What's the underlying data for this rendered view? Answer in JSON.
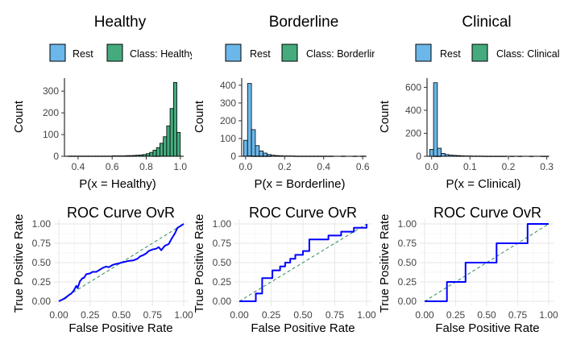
{
  "panels": [
    {
      "title": "Healthy",
      "legend": [
        {
          "label": "Rest",
          "color": "#6bb7ea"
        },
        {
          "label": "Class: Healthy",
          "color": "#45ab7e"
        }
      ],
      "hist": {
        "type": "bar",
        "xlabel": "P(x = Healthy)",
        "ylabel": "Count",
        "xlim": [
          0.32,
          1.02
        ],
        "ylim": [
          0,
          360
        ],
        "xticks": [
          0.4,
          0.6,
          0.8,
          1.0
        ],
        "xtick_labels": [
          "0.4",
          "0.6",
          "0.8",
          "1.0"
        ],
        "yticks": [
          0,
          100,
          200,
          300
        ],
        "binwidth": 0.02,
        "series": [
          {
            "name": "Rest",
            "color": "#6bb7ea",
            "bins": [
              0.35,
              0.37,
              0.39,
              0.41,
              0.43,
              0.45,
              0.47,
              0.49,
              0.51,
              0.53,
              0.55,
              0.57,
              0.59,
              0.61,
              0.63,
              0.65,
              0.67,
              0.69,
              0.71,
              0.73,
              0.75,
              0.77,
              0.79,
              0.81,
              0.83,
              0.85,
              0.87,
              0.89,
              0.91,
              0.93,
              0.95,
              0.97,
              0.99
            ],
            "counts": [
              0,
              0,
              0,
              0,
              0,
              0,
              0,
              0,
              0,
              0,
              0,
              0,
              0,
              0,
              0,
              0,
              0,
              0,
              0,
              0,
              0,
              0,
              0,
              0,
              0,
              1,
              1,
              2,
              3,
              4,
              6,
              8,
              3
            ]
          },
          {
            "name": "Class: Healthy",
            "color": "#45ab7e",
            "bins": [
              0.35,
              0.37,
              0.39,
              0.41,
              0.43,
              0.45,
              0.47,
              0.49,
              0.51,
              0.53,
              0.55,
              0.57,
              0.59,
              0.61,
              0.63,
              0.65,
              0.67,
              0.69,
              0.71,
              0.73,
              0.75,
              0.77,
              0.79,
              0.81,
              0.83,
              0.85,
              0.87,
              0.89,
              0.91,
              0.93,
              0.95,
              0.97,
              0.99
            ],
            "counts": [
              1,
              1,
              1,
              1,
              1,
              1,
              1,
              1,
              1,
              1,
              1,
              1,
              1,
              2,
              2,
              2,
              2,
              3,
              3,
              4,
              5,
              6,
              8,
              12,
              18,
              28,
              40,
              60,
              90,
              140,
              220,
              340,
              110
            ]
          }
        ]
      },
      "roc": {
        "type": "line",
        "title": "ROC Curve OvR",
        "xlabel": "False Positive Rate",
        "ylabel": "True Positive Rate",
        "xlim": [
          0,
          1
        ],
        "ylim": [
          0,
          1
        ],
        "ticks": [
          0,
          0.25,
          0.5,
          0.75,
          1
        ],
        "tick_labels": [
          "0.00",
          "0.25",
          "0.50",
          "0.75",
          "1.00"
        ],
        "x": [
          0,
          0.05,
          0.08,
          0.1,
          0.12,
          0.14,
          0.15,
          0.17,
          0.19,
          0.2,
          0.22,
          0.25,
          0.27,
          0.3,
          0.33,
          0.35,
          0.38,
          0.4,
          0.43,
          0.45,
          0.48,
          0.5,
          0.53,
          0.55,
          0.6,
          0.63,
          0.65,
          0.68,
          0.7,
          0.72,
          0.75,
          0.78,
          0.8,
          0.82,
          0.85,
          0.88,
          0.9,
          0.93,
          0.95,
          1.0
        ],
        "y": [
          0,
          0.04,
          0.08,
          0.1,
          0.14,
          0.2,
          0.17,
          0.26,
          0.3,
          0.3,
          0.35,
          0.36,
          0.38,
          0.38,
          0.41,
          0.43,
          0.45,
          0.44,
          0.47,
          0.48,
          0.49,
          0.5,
          0.51,
          0.52,
          0.53,
          0.55,
          0.58,
          0.6,
          0.62,
          0.65,
          0.67,
          0.68,
          0.7,
          0.66,
          0.72,
          0.74,
          0.8,
          0.88,
          0.95,
          1.0
        ]
      }
    },
    {
      "title": "Borderline",
      "legend": [
        {
          "label": "Rest",
          "color": "#6bb7ea"
        },
        {
          "label": "Class: Borderline",
          "color": "#45ab7e"
        }
      ],
      "hist": {
        "type": "bar",
        "xlabel": "P(x = Borderline)",
        "ylabel": "Count",
        "xlim": [
          -0.02,
          0.62
        ],
        "ylim": [
          0,
          440
        ],
        "xticks": [
          0.0,
          0.2,
          0.4,
          0.6
        ],
        "xtick_labels": [
          "0.0",
          "0.2",
          "0.4",
          "0.6"
        ],
        "yticks": [
          0,
          100,
          200,
          300,
          400
        ],
        "binwidth": 0.02,
        "series": [
          {
            "name": "Rest",
            "color": "#6bb7ea",
            "bins": [
              0.0,
              0.02,
              0.04,
              0.06,
              0.08,
              0.1,
              0.12,
              0.14,
              0.16,
              0.18,
              0.2,
              0.22,
              0.24,
              0.26,
              0.28,
              0.3,
              0.32,
              0.34,
              0.36,
              0.38,
              0.4,
              0.42,
              0.44,
              0.46,
              0.48,
              0.5,
              0.52,
              0.54,
              0.56,
              0.58,
              0.6
            ],
            "counts": [
              90,
              410,
              150,
              60,
              30,
              18,
              10,
              6,
              4,
              3,
              2,
              2,
              2,
              1,
              1,
              1,
              1,
              1,
              1,
              1,
              1,
              1,
              1,
              0,
              0,
              1,
              0,
              0,
              1,
              0,
              1
            ]
          },
          {
            "name": "Class: Borderline",
            "color": "#45ab7e",
            "bins": [
              0.0,
              0.02,
              0.04,
              0.06,
              0.08,
              0.1,
              0.12,
              0.14,
              0.16,
              0.18,
              0.2,
              0.22,
              0.24,
              0.26,
              0.28,
              0.3,
              0.32,
              0.34,
              0.36,
              0.38,
              0.4,
              0.42,
              0.44,
              0.46,
              0.48,
              0.5,
              0.52,
              0.54,
              0.56,
              0.58,
              0.6
            ],
            "counts": [
              0,
              2,
              1,
              1,
              1,
              1,
              1,
              0,
              0,
              0,
              0,
              0,
              0,
              0,
              0,
              0,
              0,
              0,
              0,
              0,
              0,
              0,
              0,
              0,
              0,
              0,
              0,
              0,
              0,
              0,
              0
            ]
          }
        ]
      },
      "roc": {
        "type": "line",
        "title": "ROC Curve OvR",
        "xlabel": "False Positive Rate",
        "ylabel": "True Positive Rate",
        "xlim": [
          0,
          1
        ],
        "ylim": [
          0,
          1
        ],
        "ticks": [
          0,
          0.25,
          0.5,
          0.75,
          1
        ],
        "tick_labels": [
          "0.00",
          "0.25",
          "0.50",
          "0.75",
          "1.00"
        ],
        "x": [
          0,
          0.13,
          0.13,
          0.18,
          0.18,
          0.26,
          0.26,
          0.32,
          0.32,
          0.36,
          0.36,
          0.4,
          0.4,
          0.44,
          0.44,
          0.5,
          0.5,
          0.55,
          0.55,
          0.62,
          0.62,
          0.7,
          0.7,
          0.8,
          0.8,
          0.9,
          0.9,
          1.0,
          1.0
        ],
        "y": [
          0,
          0,
          0.1,
          0.1,
          0.3,
          0.3,
          0.4,
          0.4,
          0.45,
          0.45,
          0.5,
          0.5,
          0.55,
          0.55,
          0.6,
          0.6,
          0.65,
          0.65,
          0.8,
          0.8,
          0.8,
          0.8,
          0.85,
          0.85,
          0.9,
          0.9,
          0.95,
          0.95,
          1.0
        ]
      }
    },
    {
      "title": "Clinical",
      "legend": [
        {
          "label": "Rest",
          "color": "#6bb7ea"
        },
        {
          "label": "Class: Clinical",
          "color": "#45ab7e"
        }
      ],
      "hist": {
        "type": "bar",
        "xlabel": "P(x = Clinical)",
        "ylabel": "Count",
        "xlim": [
          -0.012,
          0.305
        ],
        "ylim": [
          0,
          680
        ],
        "xticks": [
          0.0,
          0.1,
          0.2,
          0.3
        ],
        "xtick_labels": [
          "0.0",
          "0.1",
          "0.2",
          "0.3"
        ],
        "yticks": [
          0,
          200,
          400,
          600
        ],
        "binwidth": 0.01,
        "series": [
          {
            "name": "Rest",
            "color": "#6bb7ea",
            "bins": [
              0.0,
              0.01,
              0.02,
              0.03,
              0.04,
              0.05,
              0.06,
              0.07,
              0.08,
              0.09,
              0.1,
              0.11,
              0.12,
              0.13,
              0.14,
              0.15,
              0.16,
              0.17,
              0.18,
              0.19,
              0.2,
              0.21,
              0.22,
              0.23,
              0.24,
              0.25,
              0.26,
              0.27,
              0.28,
              0.29,
              0.3
            ],
            "counts": [
              60,
              640,
              70,
              25,
              15,
              10,
              8,
              6,
              4,
              3,
              3,
              2,
              2,
              2,
              1,
              1,
              1,
              1,
              1,
              1,
              0,
              1,
              0,
              1,
              0,
              0,
              1,
              0,
              0,
              1,
              1
            ]
          },
          {
            "name": "Class: Clinical",
            "color": "#45ab7e",
            "bins": [
              0.0,
              0.01,
              0.02,
              0.03,
              0.04,
              0.05,
              0.06,
              0.07,
              0.08,
              0.09,
              0.1,
              0.11,
              0.12,
              0.13,
              0.14,
              0.15,
              0.16,
              0.17,
              0.18,
              0.19,
              0.2,
              0.21,
              0.22,
              0.23,
              0.24,
              0.25,
              0.26,
              0.27,
              0.28,
              0.29,
              0.3
            ],
            "counts": [
              0,
              1,
              1,
              0,
              0,
              0,
              0,
              0,
              0,
              0,
              0,
              0,
              0,
              0,
              0,
              0,
              0,
              0,
              0,
              0,
              0,
              0,
              0,
              0,
              0,
              0,
              0,
              0,
              0,
              0,
              0
            ]
          }
        ]
      },
      "roc": {
        "type": "line",
        "title": "ROC Curve OvR",
        "xlabel": "False Positive Rate",
        "ylabel": "True Positive Rate",
        "xlim": [
          0,
          1
        ],
        "ylim": [
          0,
          1
        ],
        "ticks": [
          0,
          0.25,
          0.5,
          0.75,
          1
        ],
        "tick_labels": [
          "0.00",
          "0.25",
          "0.50",
          "0.75",
          "1.00"
        ],
        "x": [
          0,
          0.18,
          0.18,
          0.33,
          0.33,
          0.58,
          0.58,
          0.83,
          0.83,
          1.0,
          1.0
        ],
        "y": [
          0,
          0,
          0.25,
          0.25,
          0.5,
          0.5,
          0.75,
          0.75,
          1.0,
          1.0,
          1.0
        ]
      }
    }
  ],
  "chart_data": [
    {
      "type": "bar",
      "title": "Healthy",
      "xlabel": "P(x = Healthy)",
      "ylabel": "Count"
    },
    {
      "type": "line",
      "title": "ROC Curve OvR",
      "xlabel": "False Positive Rate",
      "ylabel": "True Positive Rate"
    },
    {
      "type": "bar",
      "title": "Borderline",
      "xlabel": "P(x = Borderline)",
      "ylabel": "Count"
    },
    {
      "type": "line",
      "title": "ROC Curve OvR",
      "xlabel": "False Positive Rate",
      "ylabel": "True Positive Rate"
    },
    {
      "type": "bar",
      "title": "Clinical",
      "xlabel": "P(x = Clinical)",
      "ylabel": "Count"
    },
    {
      "type": "line",
      "title": "ROC Curve OvR",
      "xlabel": "False Positive Rate",
      "ylabel": "True Positive Rate"
    }
  ],
  "colors": {
    "roc_line": "#0000ff",
    "diagonal": "#2e8b57",
    "grid": "#ebebeb",
    "axis": "#000000",
    "bar_outline": "#000000"
  }
}
